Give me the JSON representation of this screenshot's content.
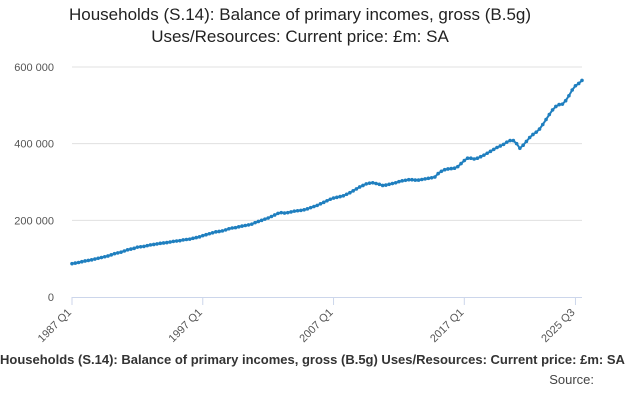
{
  "chart_data": {
    "type": "line",
    "title_line1": "Households (S.14): Balance of primary incomes, gross (B.5g)",
    "title_line2": "Uses/Resources: Current price: £m: SA",
    "xlabel": "",
    "ylabel": "",
    "ylim": [
      0,
      600000
    ],
    "y_ticks": [
      0,
      200000,
      400000,
      600000
    ],
    "y_tick_labels": [
      "0",
      "200 000",
      "400 000",
      "600 000"
    ],
    "x_tick_labels": [
      "1987 Q1",
      "1997 Q1",
      "2007 Q1",
      "2017 Q1",
      "2025 Q3"
    ],
    "x_tick_positions": [
      0,
      40,
      80,
      120,
      154
    ],
    "grid": true,
    "legend": "none",
    "color": "#1f7fbf",
    "series": [
      {
        "values": [
          87000,
          88500,
          90000,
          92000,
          94000,
          95500,
          97000,
          99000,
          101000,
          103000,
          105000,
          107000,
          110000,
          113000,
          115000,
          117000,
          120000,
          123000,
          125000,
          127000,
          130000,
          131000,
          132000,
          134000,
          136000,
          137000,
          138500,
          140000,
          141000,
          142000,
          143500,
          145000,
          146000,
          147000,
          149000,
          150000,
          151000,
          153000,
          155000,
          157000,
          160000,
          162500,
          165000,
          167500,
          170000,
          171000,
          172500,
          175000,
          178000,
          180000,
          181000,
          183000,
          185000,
          186500,
          188000,
          190000,
          194000,
          197000,
          200000,
          203000,
          206000,
          210000,
          214000,
          218000,
          220000,
          219000,
          220000,
          222000,
          224000,
          225000,
          226000,
          227500,
          230000,
          233000,
          236000,
          239000,
          243000,
          247000,
          251000,
          255000,
          258000,
          260000,
          262000,
          264000,
          268000,
          272000,
          277000,
          282000,
          287000,
          291000,
          295000,
          297000,
          298000,
          296000,
          294000,
          291000,
          292000,
          294000,
          296000,
          298000,
          301000,
          303000,
          304500,
          306000,
          306000,
          305000,
          305000,
          306500,
          308000,
          309500,
          311000,
          313000,
          322000,
          328000,
          332000,
          334000,
          335000,
          336000,
          340000,
          348000,
          356000,
          362000,
          362000,
          360000,
          362000,
          366000,
          370000,
          375000,
          380000,
          385000,
          390000,
          394000,
          398000,
          404000,
          408000,
          408000,
          400000,
          388000,
          396000,
          406000,
          416000,
          424000,
          430000,
          438000,
          450000,
          463000,
          476000,
          488000,
          497000,
          502000,
          503000,
          512000,
          525000,
          540000,
          551000,
          557000,
          565000
        ]
      }
    ]
  },
  "footer": {
    "series_name": "Households (S.14): Balance of primary incomes, gross (B.5g) Uses/Resources: Current price: £m: SA",
    "source_label": "Source:"
  }
}
